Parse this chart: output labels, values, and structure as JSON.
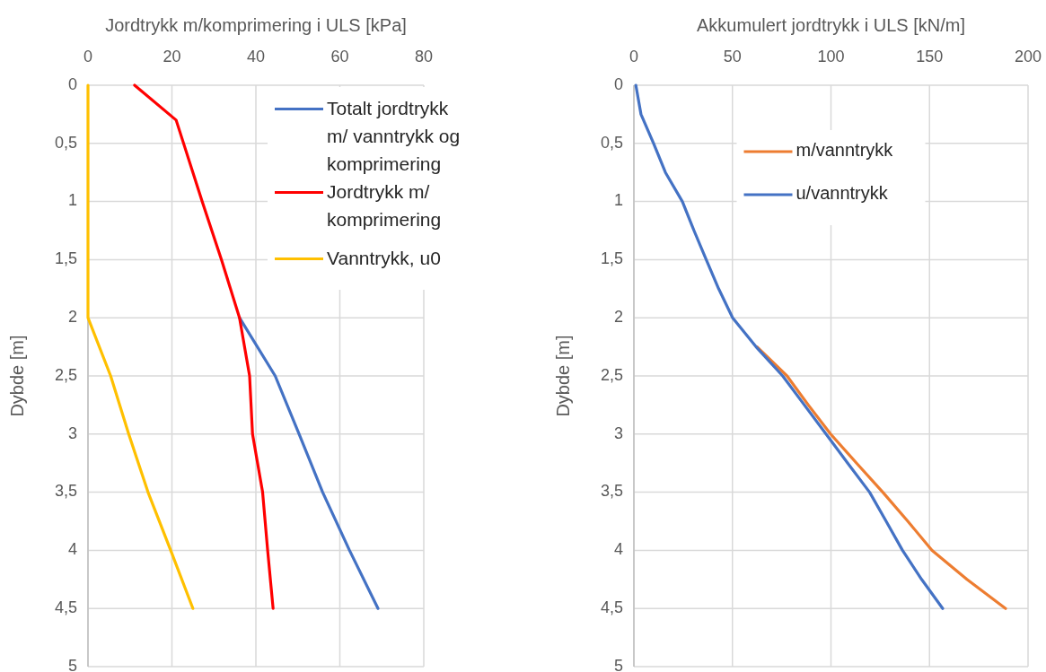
{
  "chart_data": [
    {
      "type": "line",
      "xlabel": "Jordtrykk m/komprimering i ULS [kPa]",
      "ylabel": "Dybde [m]",
      "xlim": [
        0,
        80
      ],
      "xticks": [
        0,
        20,
        40,
        60,
        80
      ],
      "ylim": [
        5,
        0
      ],
      "yticks": [
        0,
        {
          "value": 0.5,
          "label": "0,5"
        },
        1,
        {
          "value": 1.5,
          "label": "1,5"
        },
        2,
        {
          "value": 2.5,
          "label": "2,5"
        },
        3,
        {
          "value": 3.5,
          "label": "3,5"
        },
        4,
        {
          "value": 4.5,
          "label": "4,5"
        },
        5
      ],
      "grid": true,
      "legend": "top right",
      "series": [
        {
          "name": "Totalt jordtrykk m/ vanntrykk og komprimering",
          "color": "#4472c4",
          "x": [
            36.1,
            44.6,
            50.3,
            55.9,
            62.3,
            69.1
          ],
          "values": [
            2,
            2.5,
            3,
            3.5,
            4,
            4.5
          ]
        },
        {
          "name": "Jordtrykk m/ komprimering",
          "color": "#ff0000",
          "x": [
            11.1,
            21,
            27.2,
            31.8,
            36.1,
            38.5,
            39.2,
            41.6,
            42.8,
            44.1
          ],
          "values": [
            0,
            0.3,
            1,
            1.5,
            2,
            2.5,
            3,
            3.5,
            4,
            4.5
          ]
        },
        {
          "name": "Vanntrykk, u0",
          "color": "#ffc000",
          "x": [
            0,
            0,
            5.4,
            9.7,
            14.3,
            19.7,
            25
          ],
          "values": [
            0,
            2,
            2.5,
            3,
            3.5,
            4,
            4.5
          ]
        }
      ]
    },
    {
      "type": "line",
      "xlabel": "Akkumulert jordtrykk i ULS [kN/m]",
      "ylabel": "Dybde [m]",
      "xlim": [
        0,
        200
      ],
      "xticks": [
        0,
        50,
        100,
        150,
        200
      ],
      "ylim": [
        5,
        0
      ],
      "yticks": [
        0,
        {
          "value": 0.5,
          "label": "0,5"
        },
        1,
        {
          "value": 1.5,
          "label": "1,5"
        },
        2,
        {
          "value": 2.5,
          "label": "2,5"
        },
        3,
        {
          "value": 3.5,
          "label": "3,5"
        },
        4,
        {
          "value": 4.5,
          "label": "4,5"
        },
        5
      ],
      "grid": true,
      "legend": "top",
      "series": [
        {
          "name": "m/vanntrykk",
          "color": "#ed7d31",
          "x": [
            null,
            null,
            null,
            null,
            null,
            null,
            null,
            null,
            null,
            62.5,
            77.7,
            88.5,
            99.8,
            113,
            126.3,
            139,
            151.3,
            169,
            188.6
          ],
          "values": [
            null,
            null,
            null,
            null,
            null,
            null,
            null,
            null,
            null,
            2.25,
            2.5,
            2.75,
            3,
            3.25,
            3.5,
            3.75,
            4,
            4.25,
            4.5
          ]
        },
        {
          "name": "u/vanntrykk",
          "color": "#4472c4",
          "x": [
            1,
            3.6,
            10,
            16,
            24.6,
            30.5,
            36.7,
            43,
            50.1,
            62,
            75.5,
            86.5,
            97.5,
            108.5,
            119.6,
            128,
            136.3,
            146,
            156.7
          ],
          "values": [
            0,
            0.25,
            0.5,
            0.75,
            1,
            1.25,
            1.5,
            1.75,
            2,
            2.25,
            2.5,
            2.75,
            3,
            3.25,
            3.5,
            3.75,
            4,
            4.25,
            4.5
          ]
        }
      ]
    }
  ]
}
